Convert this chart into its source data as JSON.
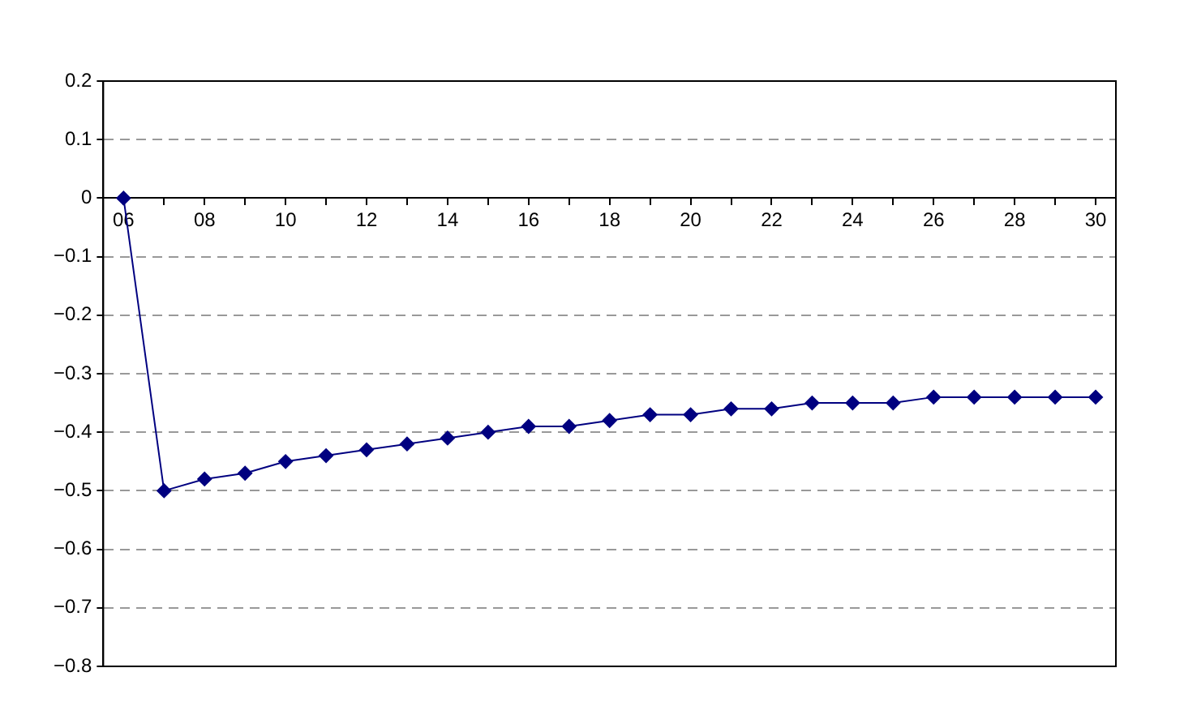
{
  "chart_data": {
    "type": "line",
    "categories": [
      "06",
      null,
      "08",
      null,
      "10",
      null,
      "12",
      null,
      "14",
      null,
      "16",
      null,
      "18",
      null,
      "20",
      null,
      "22",
      null,
      "24",
      null,
      "26",
      null,
      "28",
      null,
      "30"
    ],
    "series": [
      {
        "color": "#000080",
        "values": [
          0,
          -0.5,
          -0.48,
          -0.47,
          -0.45,
          -0.44,
          -0.43,
          -0.42,
          -0.41,
          -0.4,
          -0.39,
          -0.39,
          -0.38,
          -0.37,
          -0.37,
          -0.36,
          -0.36,
          -0.35,
          -0.35,
          -0.35,
          -0.34,
          -0.34,
          -0.34,
          -0.34,
          -0.34
        ]
      }
    ],
    "ylim": [
      -0.8,
      0.2
    ],
    "yticks": [
      0.2,
      0.1,
      0,
      {
        "value": -0.1,
        "label": "−0.1"
      },
      {
        "value": -0.2,
        "label": "−0.2"
      },
      {
        "value": -0.3,
        "label": "−0.3"
      },
      {
        "value": -0.4,
        "label": "−0.4"
      },
      {
        "value": -0.5,
        "label": "−0.5"
      },
      {
        "value": -0.6,
        "label": "−0.6"
      },
      {
        "value": -0.7,
        "label": "−0.7"
      },
      {
        "value": -0.8,
        "label": "−0.8"
      }
    ],
    "grid": "y",
    "legend": false,
    "marker": "diamond",
    "line_style": "solid"
  }
}
